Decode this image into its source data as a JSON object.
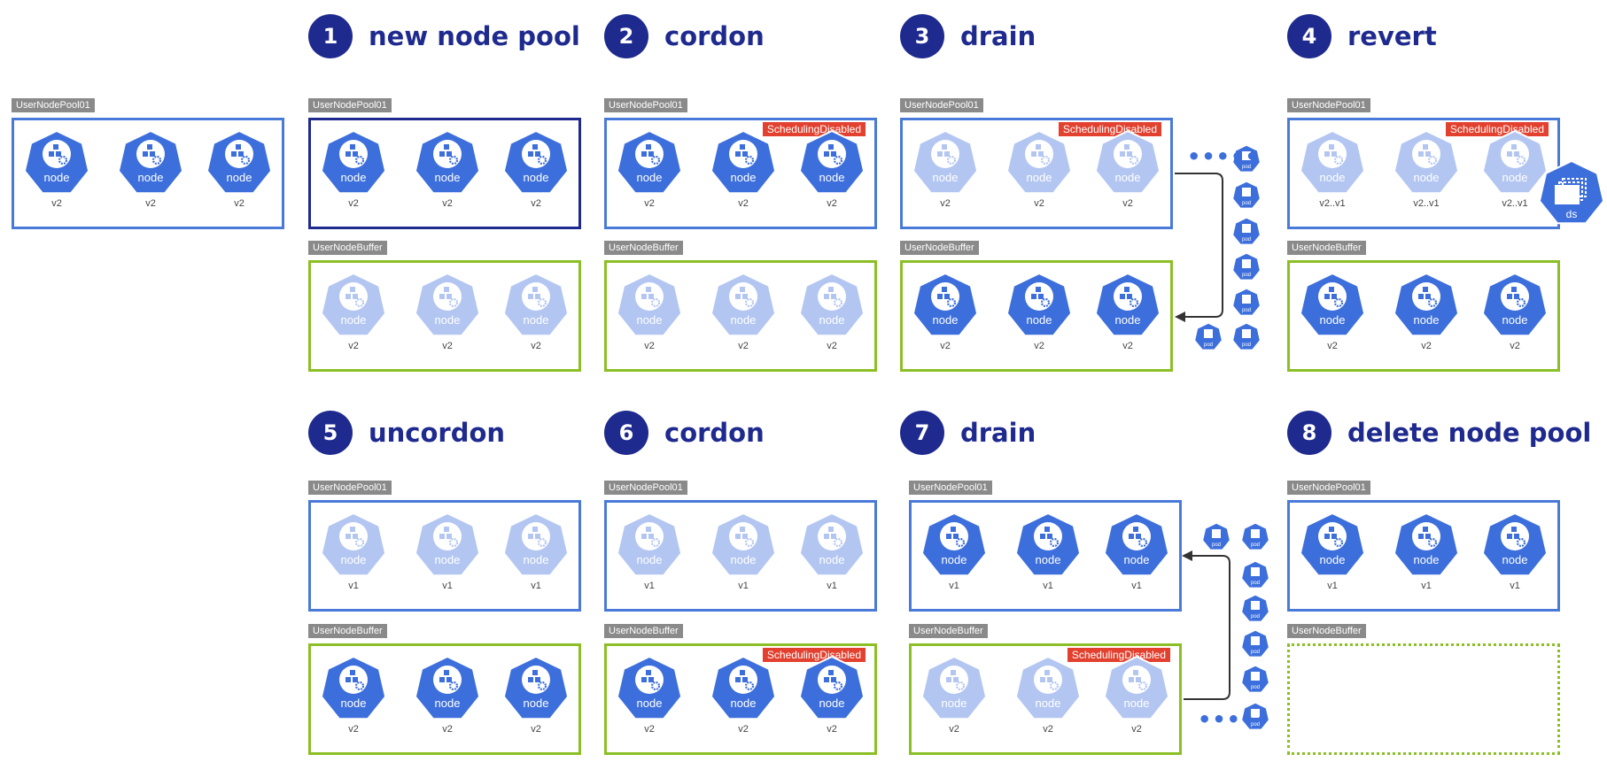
{
  "diagram": {
    "initial": {
      "pools": [
        {
          "label": "UserNodePool01",
          "style": "blue",
          "nodes": [
            {
              "text": "node",
              "version": "v2",
              "faded": false
            },
            {
              "text": "node",
              "version": "v2",
              "faded": false
            },
            {
              "text": "node",
              "version": "v2",
              "faded": false
            }
          ]
        }
      ]
    },
    "steps": [
      {
        "number": "1",
        "title": "new node pool",
        "pools": [
          {
            "label": "UserNodePool01",
            "style": "darkblue",
            "nodes": [
              {
                "text": "node",
                "version": "v2",
                "faded": false
              },
              {
                "text": "node",
                "version": "v2",
                "faded": false
              },
              {
                "text": "node",
                "version": "v2",
                "faded": false
              }
            ]
          },
          {
            "label": "UserNodeBuffer",
            "style": "green",
            "nodes": [
              {
                "text": "node",
                "version": "v2",
                "faded": true
              },
              {
                "text": "node",
                "version": "v2",
                "faded": true
              },
              {
                "text": "node",
                "version": "v2",
                "faded": true
              }
            ]
          }
        ]
      },
      {
        "number": "2",
        "title": "cordon",
        "pools": [
          {
            "label": "UserNodePool01",
            "style": "blue",
            "badge": "SchedulingDisabled",
            "nodes": [
              {
                "text": "node",
                "version": "v2",
                "faded": false
              },
              {
                "text": "node",
                "version": "v2",
                "faded": false
              },
              {
                "text": "node",
                "version": "v2",
                "faded": false
              }
            ]
          },
          {
            "label": "UserNodeBuffer",
            "style": "green",
            "nodes": [
              {
                "text": "node",
                "version": "v2",
                "faded": true
              },
              {
                "text": "node",
                "version": "v2",
                "faded": true
              },
              {
                "text": "node",
                "version": "v2",
                "faded": true
              }
            ]
          }
        ]
      },
      {
        "number": "3",
        "title": "drain",
        "pools": [
          {
            "label": "UserNodePool01",
            "style": "blue",
            "badge": "SchedulingDisabled",
            "nodes": [
              {
                "text": "node",
                "version": "v2",
                "faded": true
              },
              {
                "text": "node",
                "version": "v2",
                "faded": true
              },
              {
                "text": "node",
                "version": "v2",
                "faded": true
              }
            ]
          },
          {
            "label": "UserNodeBuffer",
            "style": "green",
            "nodes": [
              {
                "text": "node",
                "version": "v2",
                "faded": false
              },
              {
                "text": "node",
                "version": "v2",
                "faded": false
              },
              {
                "text": "node",
                "version": "v2",
                "faded": false
              }
            ]
          }
        ],
        "pods": [
          "pod",
          "pod",
          "pod",
          "pod",
          "pod",
          "pod",
          "pod"
        ],
        "dots": "•••••"
      },
      {
        "number": "4",
        "title": "revert",
        "pools": [
          {
            "label": "UserNodePool01",
            "style": "blue",
            "badge": "SchedulingDisabled",
            "nodes": [
              {
                "text": "node",
                "version": "v2..v1",
                "faded": true
              },
              {
                "text": "node",
                "version": "v2..v1",
                "faded": true
              },
              {
                "text": "node",
                "version": "v2..v1",
                "faded": true
              }
            ]
          },
          {
            "label": "UserNodeBuffer",
            "style": "green",
            "nodes": [
              {
                "text": "node",
                "version": "v2",
                "faded": false
              },
              {
                "text": "node",
                "version": "v2",
                "faded": false
              },
              {
                "text": "node",
                "version": "v2",
                "faded": false
              }
            ]
          }
        ],
        "ds_label": "ds"
      },
      {
        "number": "5",
        "title": "uncordon",
        "pools": [
          {
            "label": "UserNodePool01",
            "style": "blue",
            "nodes": [
              {
                "text": "node",
                "version": "v1",
                "faded": true
              },
              {
                "text": "node",
                "version": "v1",
                "faded": true
              },
              {
                "text": "node",
                "version": "v1",
                "faded": true
              }
            ]
          },
          {
            "label": "UserNodeBuffer",
            "style": "green",
            "nodes": [
              {
                "text": "node",
                "version": "v2",
                "faded": false
              },
              {
                "text": "node",
                "version": "v2",
                "faded": false
              },
              {
                "text": "node",
                "version": "v2",
                "faded": false
              }
            ]
          }
        ]
      },
      {
        "number": "6",
        "title": "cordon",
        "pools": [
          {
            "label": "UserNodePool01",
            "style": "blue",
            "nodes": [
              {
                "text": "node",
                "version": "v1",
                "faded": true
              },
              {
                "text": "node",
                "version": "v1",
                "faded": true
              },
              {
                "text": "node",
                "version": "v1",
                "faded": true
              }
            ]
          },
          {
            "label": "UserNodeBuffer",
            "style": "green",
            "badge": "SchedulingDisabled",
            "nodes": [
              {
                "text": "node",
                "version": "v2",
                "faded": false
              },
              {
                "text": "node",
                "version": "v2",
                "faded": false
              },
              {
                "text": "node",
                "version": "v2",
                "faded": false
              }
            ]
          }
        ]
      },
      {
        "number": "7",
        "title": "drain",
        "pools": [
          {
            "label": "UserNodePool01",
            "style": "blue",
            "nodes": [
              {
                "text": "node",
                "version": "v1",
                "faded": false
              },
              {
                "text": "node",
                "version": "v1",
                "faded": false
              },
              {
                "text": "node",
                "version": "v1",
                "faded": false
              }
            ]
          },
          {
            "label": "UserNodeBuffer",
            "style": "green",
            "badge": "SchedulingDisabled",
            "nodes": [
              {
                "text": "node",
                "version": "v2",
                "faded": true
              },
              {
                "text": "node",
                "version": "v2",
                "faded": true
              },
              {
                "text": "node",
                "version": "v2",
                "faded": true
              }
            ]
          }
        ],
        "pods": [
          "pod",
          "pod",
          "pod",
          "pod",
          "pod",
          "pod",
          "pod"
        ],
        "dots": "•••••"
      },
      {
        "number": "8",
        "title": "delete node pool",
        "pools": [
          {
            "label": "UserNodePool01",
            "style": "blue",
            "nodes": [
              {
                "text": "node",
                "version": "v1",
                "faded": false
              },
              {
                "text": "node",
                "version": "v1",
                "faded": false
              },
              {
                "text": "node",
                "version": "v1",
                "faded": false
              }
            ]
          },
          {
            "label": "UserNodeBuffer",
            "style": "dotted",
            "nodes": []
          }
        ]
      }
    ],
    "colors": {
      "node_solid": "#3d6fdc",
      "node_faded": "#b3c6f2",
      "title": "#1f2a8f",
      "pool_border": "#4a7ad8",
      "buffer_border": "#8cbf26",
      "badge": "#e2412f",
      "label_bg": "#8a8a8a"
    }
  }
}
